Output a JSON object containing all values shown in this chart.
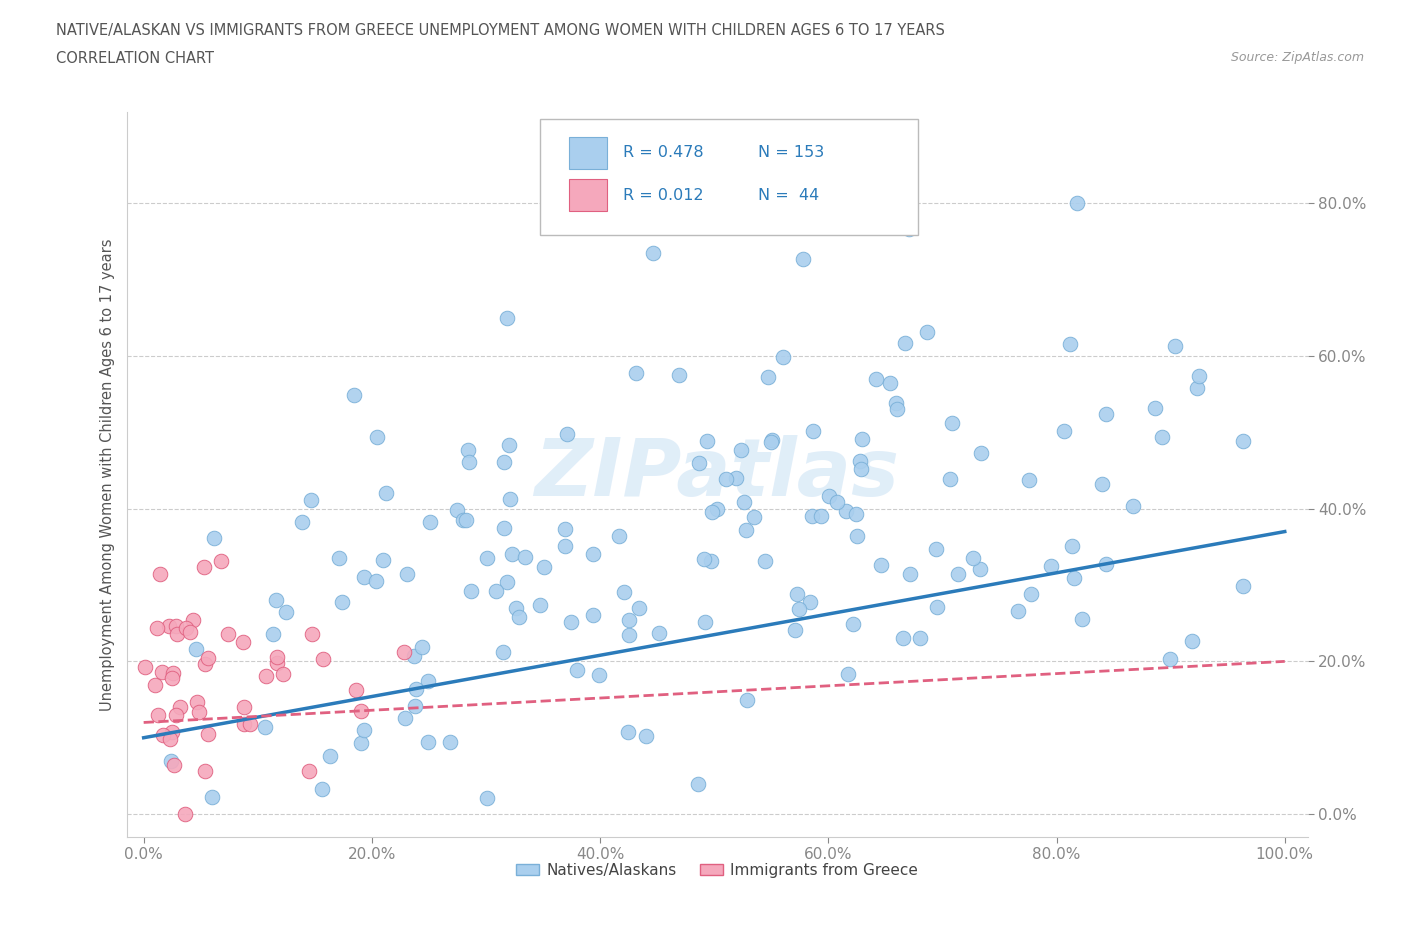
{
  "title_line1": "NATIVE/ALASKAN VS IMMIGRANTS FROM GREECE UNEMPLOYMENT AMONG WOMEN WITH CHILDREN AGES 6 TO 17 YEARS",
  "title_line2": "CORRELATION CHART",
  "source": "Source: ZipAtlas.com",
  "ylabel": "Unemployment Among Women with Children Ages 6 to 17 years",
  "xlim": [
    0.0,
    1.0
  ],
  "ylim": [
    0.0,
    1.0
  ],
  "xtick_vals": [
    0.0,
    0.2,
    0.4,
    0.6,
    0.8,
    1.0
  ],
  "ytick_vals": [
    0.0,
    0.2,
    0.4,
    0.6,
    0.8
  ],
  "xtick_labels": [
    "0.0%",
    "20.0%",
    "40.0%",
    "60.0%",
    "80.0%",
    "100.0%"
  ],
  "ytick_labels": [
    "0.0%",
    "20.0%",
    "40.0%",
    "60.0%",
    "80.0%"
  ],
  "native_color": "#aacfee",
  "immigrant_color": "#f5a8bc",
  "native_edge_color": "#7ab0d8",
  "immigrant_edge_color": "#e06080",
  "trend_native_color": "#2b7bba",
  "trend_immigrant_color": "#e06080",
  "legend_R_native": "R = 0.478",
  "legend_N_native": "N = 153",
  "legend_R_immigrant": "R = 0.012",
  "legend_N_immigrant": "N =  44",
  "legend_color": "#2b7bba",
  "watermark": "ZIPatlas",
  "grid_color": "#cccccc",
  "background_color": "#ffffff",
  "title_color": "#555555",
  "source_color": "#999999",
  "ylabel_color": "#555555",
  "tick_color": "#5577aa"
}
